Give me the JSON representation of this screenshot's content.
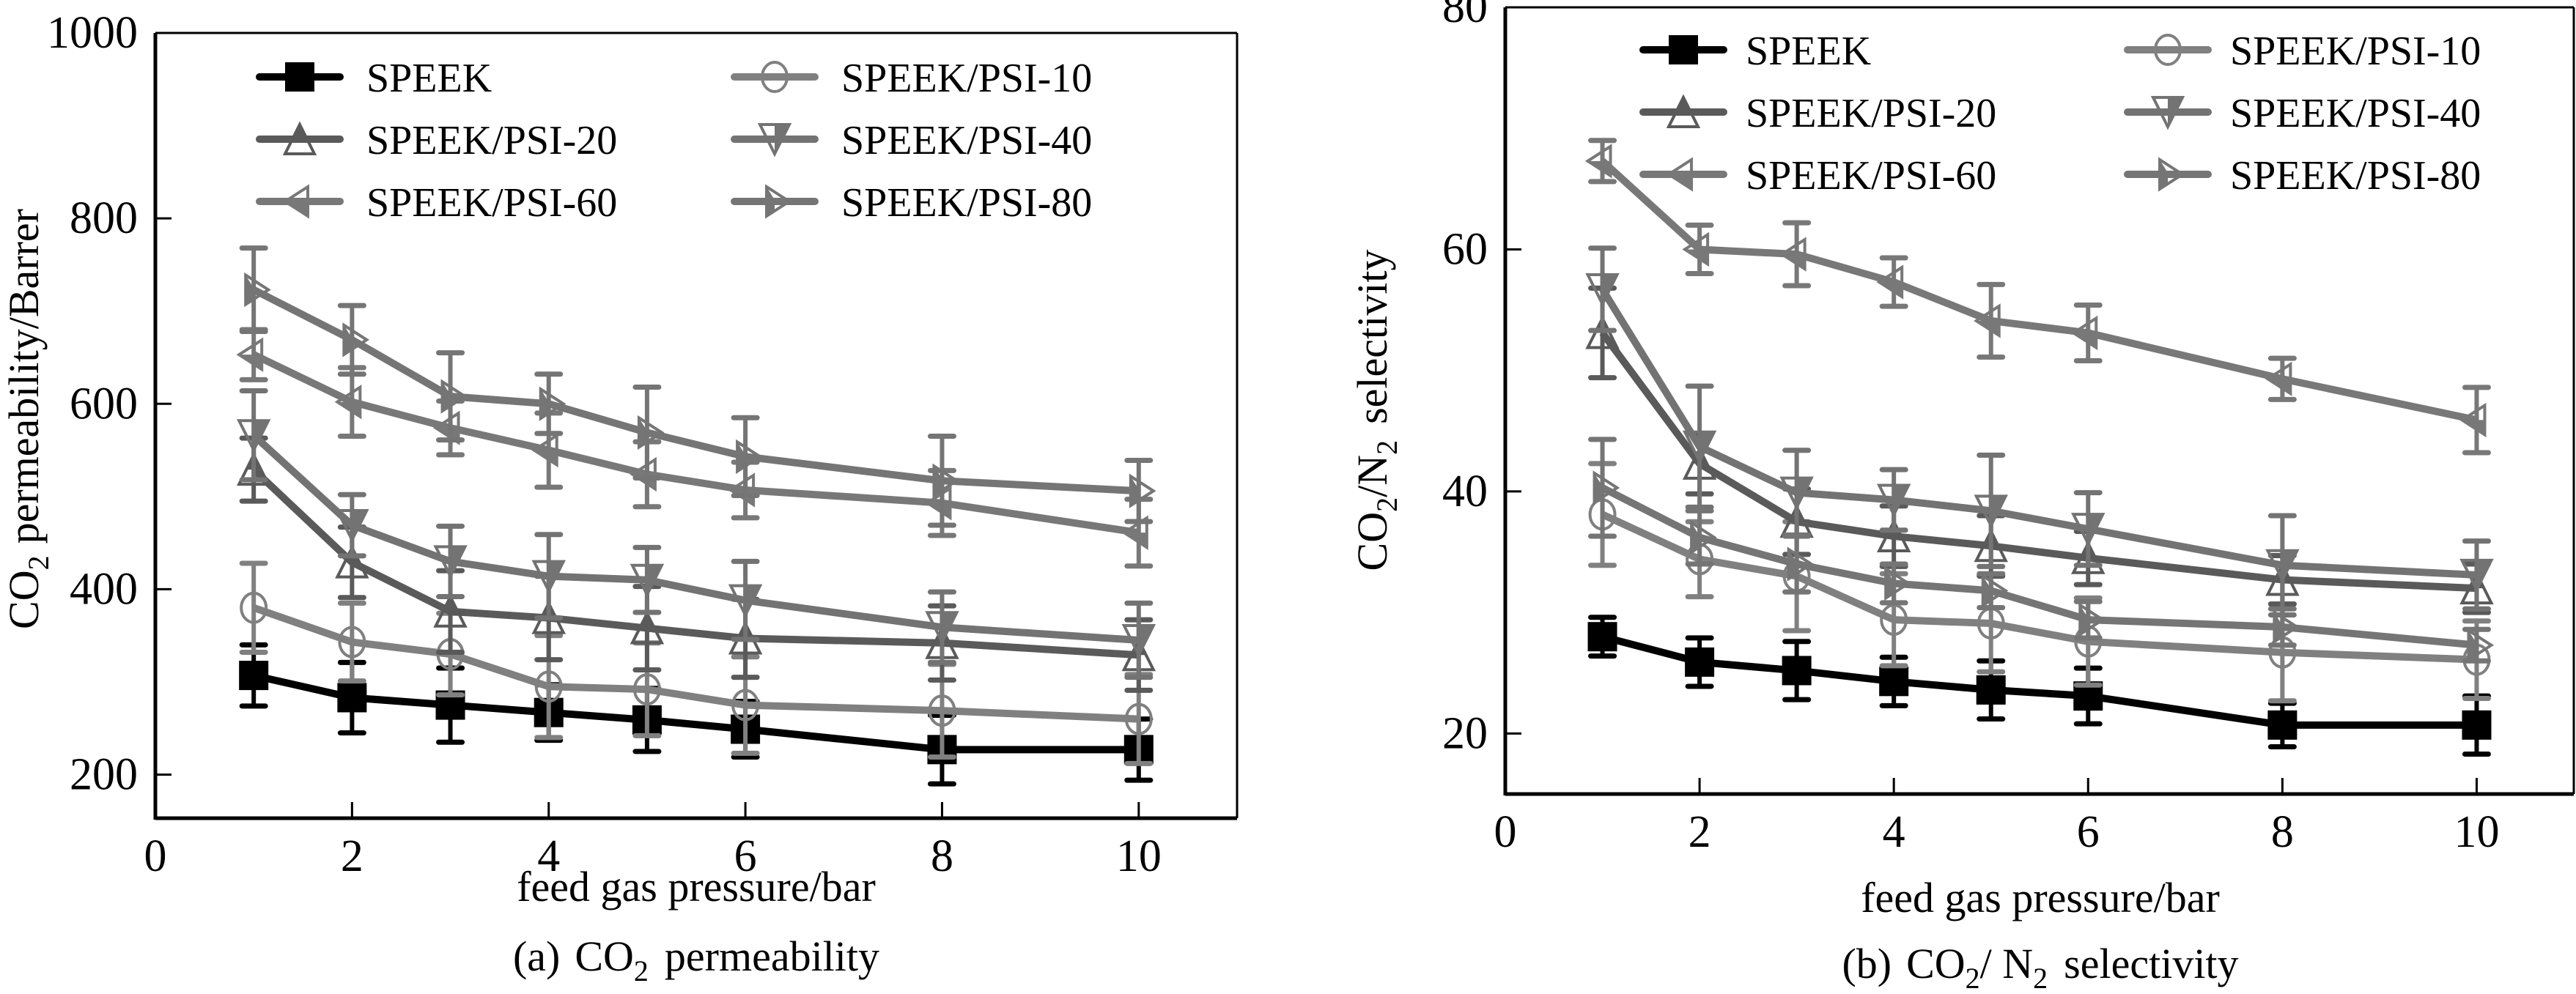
{
  "figure": {
    "panels": 2
  },
  "chart_data": [
    {
      "type": "line",
      "panel": "a",
      "title": "",
      "caption": {
        "prefix": "(a)",
        "main": "CO",
        "sub": "2",
        "rest": "permeability"
      },
      "xlabel": "feed gas pressure/bar",
      "ylabel": {
        "main": "CO",
        "sub": "2",
        "rest": "permeability/Barrer"
      },
      "xlim": [
        0,
        11
      ],
      "ylim": [
        153,
        1000
      ],
      "xticks": [
        0,
        2,
        4,
        6,
        8,
        10
      ],
      "xtick_labels": [
        "0",
        "2",
        "4",
        "6",
        "8",
        "10"
      ],
      "yticks": [
        200,
        400,
        600,
        800,
        1000
      ],
      "ytick_labels": [
        "200",
        "400",
        "600",
        "800",
        "1000"
      ],
      "grid": false,
      "legend_position": "top",
      "x": [
        1,
        2,
        3,
        4,
        5,
        6,
        8,
        10
      ],
      "series": [
        {
          "name": "SPEEK",
          "marker": "square",
          "color": "#000000",
          "values": [
            307,
            283,
            275,
            267,
            259,
            249,
            227,
            227
          ],
          "errors": [
            33,
            38,
            40,
            30,
            34,
            30,
            37,
            33
          ]
        },
        {
          "name": "SPEEK/PSI-10",
          "marker": "circle",
          "color": "#808080",
          "values": [
            380,
            343,
            330,
            295,
            292,
            275,
            269,
            260
          ],
          "errors": [
            48,
            42,
            44,
            55,
            50,
            52,
            50,
            48
          ]
        },
        {
          "name": "SPEEK/PSI-20",
          "marker": "triangle-up",
          "color": "#5a5a5a",
          "values": [
            529,
            429,
            376,
            369,
            358,
            347,
            342,
            329
          ],
          "errors": [
            34,
            38,
            44,
            45,
            45,
            42,
            40,
            38
          ]
        },
        {
          "name": "SPEEK/PSI-40",
          "marker": "triangle-down",
          "color": "#737373",
          "values": [
            566,
            469,
            430,
            414,
            410,
            388,
            359,
            345
          ],
          "errors": [
            48,
            33,
            38,
            45,
            35,
            42,
            38,
            40
          ]
        },
        {
          "name": "SPEEK/PSI-60",
          "marker": "triangle-left",
          "color": "#787878",
          "values": [
            653,
            602,
            574,
            550,
            524,
            507,
            493,
            461
          ],
          "errors": [
            27,
            37,
            29,
            40,
            35,
            30,
            35,
            36
          ]
        },
        {
          "name": "SPEEK/PSI-80",
          "marker": "triangle-right",
          "color": "#757575",
          "values": [
            723,
            669,
            608,
            600,
            569,
            543,
            517,
            506
          ],
          "errors": [
            45,
            37,
            47,
            32,
            49,
            42,
            48,
            33
          ]
        }
      ]
    },
    {
      "type": "line",
      "panel": "b",
      "title": "",
      "caption": {
        "prefix": "(b)",
        "main": "CO",
        "sub": "2",
        "mid": "/ N",
        "sub2": "2",
        "rest": "selectivity"
      },
      "xlabel": "feed gas pressure/bar",
      "ylabel": {
        "main": "CO",
        "sub": "2",
        "mid": "/N",
        "sub2": "2",
        "rest": "selectivity"
      },
      "xlim": [
        0,
        11
      ],
      "ylim": [
        15,
        80
      ],
      "xticks": [
        0,
        2,
        4,
        6,
        8,
        10
      ],
      "xtick_labels": [
        "0",
        "2",
        "4",
        "6",
        "8",
        "10"
      ],
      "yticks": [
        20,
        40,
        60,
        80
      ],
      "ytick_labels": [
        "20",
        "40",
        "60",
        "80"
      ],
      "grid": false,
      "legend_position": "top",
      "x": [
        1,
        2,
        3,
        4,
        5,
        6,
        8,
        10
      ],
      "series": [
        {
          "name": "SPEEK",
          "marker": "square",
          "color": "#000000",
          "values": [
            28.0,
            25.9,
            25.2,
            24.3,
            23.6,
            23.1,
            20.7,
            20.7
          ],
          "errors": [
            1.6,
            2.0,
            2.4,
            2.0,
            2.4,
            2.3,
            1.8,
            2.4
          ]
        },
        {
          "name": "SPEEK/PSI-10",
          "marker": "circle",
          "color": "#808080",
          "values": [
            38.1,
            34.4,
            33.0,
            29.4,
            29.1,
            27.6,
            26.7,
            26.1
          ],
          "errors": [
            4.2,
            3.1,
            4.5,
            3.8,
            4.0,
            3.6,
            4.0,
            3.2
          ]
        },
        {
          "name": "SPEEK/PSI-20",
          "marker": "triangle-up",
          "color": "#5a5a5a",
          "values": [
            53.1,
            42.3,
            37.5,
            36.3,
            35.5,
            34.5,
            32.7,
            32.0
          ],
          "errors": [
            3.7,
            2.5,
            2.7,
            2.5,
            2.5,
            2.2,
            2.0,
            2.0
          ]
        },
        {
          "name": "SPEEK/PSI-40",
          "marker": "triangle-down",
          "color": "#737373",
          "values": [
            56.7,
            43.7,
            39.9,
            39.3,
            38.4,
            36.9,
            33.9,
            33.1
          ],
          "errors": [
            3.4,
            5.0,
            3.5,
            2.5,
            4.6,
            3.0,
            4.1,
            2.8
          ]
        },
        {
          "name": "SPEEK/PSI-60",
          "marker": "triangle-left",
          "color": "#787878",
          "values": [
            67.3,
            60.0,
            59.6,
            57.3,
            54.1,
            53.1,
            49.3,
            45.9
          ],
          "errors": [
            1.7,
            2.0,
            2.6,
            2.0,
            3.0,
            2.3,
            1.7,
            2.7
          ]
        },
        {
          "name": "SPEEK/PSI-80",
          "marker": "triangle-right",
          "color": "#757575",
          "values": [
            40.3,
            36.2,
            34.0,
            32.4,
            31.8,
            29.4,
            28.8,
            27.3
          ],
          "errors": [
            4.0,
            2.2,
            2.3,
            1.6,
            1.4,
            1.5,
            1.5,
            1.3
          ]
        }
      ]
    }
  ]
}
